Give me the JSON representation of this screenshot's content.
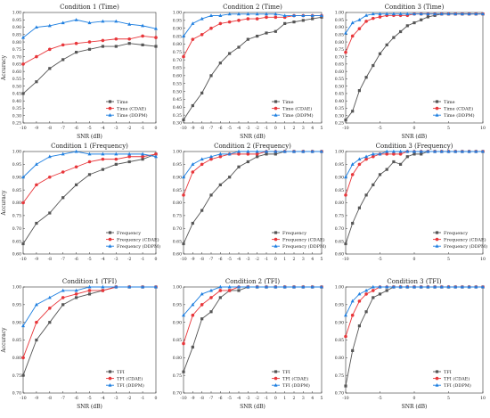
{
  "figure": {
    "label": ""
  },
  "style": {
    "series_colors": [
      "#555555",
      "#e8363a",
      "#1f7fe0"
    ],
    "series_markers": [
      "square",
      "circle",
      "triangle"
    ]
  },
  "chart_data": [
    {
      "type": "line",
      "title": "Condition 1 (Time)",
      "xlabel": "SNR (dB)",
      "ylabel": "Accuracy",
      "x": [
        -10,
        -9,
        -8,
        -7,
        -6,
        -5,
        -4,
        -3,
        -2,
        -1,
        0
      ],
      "xlim": [
        -10,
        0
      ],
      "xticks": [
        -10,
        -9,
        -8,
        -7,
        -6,
        -5,
        -4,
        -3,
        -2,
        -1,
        0
      ],
      "ylim": [
        0.25,
        1.0
      ],
      "yticks": [
        0.25,
        0.3,
        0.35,
        0.4,
        0.45,
        0.5,
        0.55,
        0.6,
        0.65,
        0.7,
        0.75,
        0.8,
        0.85,
        0.9,
        0.95,
        1.0
      ],
      "grid": false,
      "legend": "bottom-right",
      "series": [
        {
          "name": "Time",
          "values": [
            0.45,
            0.53,
            0.62,
            0.68,
            0.73,
            0.75,
            0.77,
            0.77,
            0.79,
            0.78,
            0.77
          ]
        },
        {
          "name": "Time (CDAE)",
          "values": [
            0.65,
            0.7,
            0.75,
            0.78,
            0.79,
            0.8,
            0.81,
            0.82,
            0.82,
            0.84,
            0.83
          ]
        },
        {
          "name": "Time (DDPM)",
          "values": [
            0.83,
            0.9,
            0.91,
            0.93,
            0.95,
            0.93,
            0.94,
            0.94,
            0.92,
            0.91,
            0.89
          ]
        }
      ]
    },
    {
      "type": "line",
      "title": "Condition 2 (Time)",
      "xlabel": "SNR (dB)",
      "ylabel": "",
      "x": [
        -10,
        -9,
        -8,
        -7,
        -6,
        -5,
        -4,
        -3,
        -2,
        -1,
        0,
        1,
        2,
        3,
        4,
        5
      ],
      "xlim": [
        -10,
        5
      ],
      "xticks": [
        -10,
        -9,
        -8,
        -7,
        -6,
        -5,
        -4,
        -3,
        -2,
        -1,
        0,
        1,
        2,
        3,
        4,
        5
      ],
      "ylim": [
        0.3,
        1.0
      ],
      "yticks": [
        0.3,
        0.35,
        0.4,
        0.45,
        0.5,
        0.55,
        0.6,
        0.65,
        0.7,
        0.75,
        0.8,
        0.85,
        0.9,
        0.95,
        1.0
      ],
      "grid": false,
      "legend": "bottom-right",
      "series": [
        {
          "name": "Time",
          "values": [
            0.32,
            0.41,
            0.49,
            0.6,
            0.68,
            0.74,
            0.78,
            0.83,
            0.85,
            0.87,
            0.88,
            0.93,
            0.94,
            0.95,
            0.96,
            0.97
          ]
        },
        {
          "name": "Time (CDAE)",
          "values": [
            0.72,
            0.83,
            0.86,
            0.9,
            0.93,
            0.94,
            0.95,
            0.96,
            0.96,
            0.97,
            0.97,
            0.97,
            0.98,
            0.98,
            0.98,
            0.98
          ]
        },
        {
          "name": "Time (DDPM)",
          "values": [
            0.85,
            0.93,
            0.96,
            0.98,
            0.98,
            0.99,
            0.99,
            0.99,
            0.99,
            0.99,
            0.99,
            0.98,
            0.98,
            0.98,
            0.98,
            0.98
          ]
        }
      ]
    },
    {
      "type": "line",
      "title": "Condition 3 (Time)",
      "xlabel": "SNR (dB)",
      "ylabel": "",
      "x": [
        -10,
        -9,
        -8,
        -7,
        -6,
        -5,
        -4,
        -3,
        -2,
        -1,
        0,
        1,
        2,
        3,
        4,
        5,
        6,
        7,
        8,
        9,
        10
      ],
      "xlim": [
        -10,
        10
      ],
      "xticks": [
        -10,
        -5,
        0,
        5,
        10
      ],
      "ylim": [
        0.25,
        1.0
      ],
      "yticks": [
        0.25,
        0.3,
        0.35,
        0.4,
        0.45,
        0.5,
        0.55,
        0.6,
        0.65,
        0.7,
        0.75,
        0.8,
        0.85,
        0.9,
        0.95,
        1.0
      ],
      "grid": false,
      "legend": "bottom-right",
      "series": [
        {
          "name": "Time",
          "values": [
            0.27,
            0.33,
            0.47,
            0.56,
            0.64,
            0.72,
            0.78,
            0.83,
            0.87,
            0.91,
            0.93,
            0.95,
            0.97,
            0.98,
            0.99,
            0.99,
            0.99,
            0.99,
            0.99,
            0.99,
            0.99
          ]
        },
        {
          "name": "Time (CDAE)",
          "values": [
            0.73,
            0.84,
            0.89,
            0.94,
            0.96,
            0.97,
            0.98,
            0.98,
            0.98,
            0.98,
            0.99,
            0.99,
            0.99,
            0.99,
            0.99,
            0.99,
            0.99,
            0.99,
            0.99,
            0.99,
            0.99
          ]
        },
        {
          "name": "Time (DDPM)",
          "values": [
            0.86,
            0.93,
            0.95,
            0.98,
            0.99,
            0.99,
            0.99,
            0.99,
            0.99,
            0.99,
            0.99,
            0.99,
            0.99,
            0.99,
            0.99,
            0.99,
            0.99,
            0.99,
            0.99,
            0.99,
            0.99
          ]
        }
      ]
    },
    {
      "type": "line",
      "title": "Condition 1 (Frequency)",
      "xlabel": "",
      "ylabel": "Accuracy",
      "x": [
        -10,
        -9,
        -8,
        -7,
        -6,
        -5,
        -4,
        -3,
        -2,
        -1,
        0
      ],
      "xlim": [
        -10,
        0
      ],
      "xticks": [
        -10,
        -9,
        -8,
        -7,
        -6,
        -5,
        -4,
        -3,
        -2,
        -1,
        0
      ],
      "ylim": [
        0.6,
        1.0
      ],
      "yticks": [
        0.6,
        0.65,
        0.7,
        0.75,
        0.8,
        0.85,
        0.9,
        0.95,
        1.0
      ],
      "grid": false,
      "legend": "bottom-right",
      "series": [
        {
          "name": "Frequency",
          "values": [
            0.64,
            0.72,
            0.76,
            0.82,
            0.87,
            0.91,
            0.93,
            0.95,
            0.96,
            0.97,
            0.99
          ]
        },
        {
          "name": "Frequency (CDAE)",
          "values": [
            0.8,
            0.87,
            0.9,
            0.92,
            0.94,
            0.96,
            0.97,
            0.97,
            0.98,
            0.98,
            0.99
          ]
        },
        {
          "name": "Frequency (DDPM)",
          "values": [
            0.9,
            0.95,
            0.98,
            0.99,
            1.0,
            0.99,
            0.99,
            0.99,
            0.99,
            0.99,
            0.98
          ]
        }
      ]
    },
    {
      "type": "line",
      "title": "Condition 2 (Frequency)",
      "xlabel": "",
      "ylabel": "",
      "x": [
        -10,
        -9,
        -8,
        -7,
        -6,
        -5,
        -4,
        -3,
        -2,
        -1,
        0,
        1,
        2,
        3,
        4,
        5
      ],
      "xlim": [
        -10,
        5
      ],
      "xticks": [
        -10,
        -9,
        -8,
        -7,
        -6,
        -5,
        -4,
        -3,
        -2,
        -1,
        0,
        1,
        2,
        3,
        4,
        5
      ],
      "ylim": [
        0.6,
        1.0
      ],
      "yticks": [
        0.6,
        0.65,
        0.7,
        0.75,
        0.8,
        0.85,
        0.9,
        0.95,
        1.0
      ],
      "grid": false,
      "legend": "bottom-right",
      "series": [
        {
          "name": "Frequency",
          "values": [
            0.64,
            0.72,
            0.77,
            0.83,
            0.87,
            0.9,
            0.94,
            0.96,
            0.98,
            0.99,
            0.99,
            1.0,
            1.0,
            1.0,
            1.0,
            1.0
          ]
        },
        {
          "name": "Frequency (CDAE)",
          "values": [
            0.83,
            0.92,
            0.95,
            0.97,
            0.98,
            0.99,
            0.99,
            0.99,
            0.99,
            1.0,
            1.0,
            1.0,
            1.0,
            1.0,
            1.0,
            1.0
          ]
        },
        {
          "name": "Frequency (DDPM)",
          "values": [
            0.9,
            0.95,
            0.97,
            0.98,
            0.99,
            0.99,
            1.0,
            1.0,
            1.0,
            1.0,
            1.0,
            1.0,
            1.0,
            1.0,
            1.0,
            1.0
          ]
        }
      ]
    },
    {
      "type": "line",
      "title": "Condition 3 (Frequency)",
      "xlabel": "",
      "ylabel": "",
      "x": [
        -10,
        -9,
        -8,
        -7,
        -6,
        -5,
        -4,
        -3,
        -2,
        -1,
        0,
        1,
        2,
        3,
        4,
        5,
        6,
        7,
        8,
        9,
        10
      ],
      "xlim": [
        -10,
        10
      ],
      "xticks": [
        -10,
        -5,
        0,
        5,
        10
      ],
      "ylim": [
        0.6,
        1.0
      ],
      "yticks": [
        0.6,
        0.65,
        0.7,
        0.75,
        0.8,
        0.85,
        0.9,
        0.95,
        1.0
      ],
      "grid": false,
      "legend": "bottom-right",
      "series": [
        {
          "name": "Frequency",
          "values": [
            0.64,
            0.72,
            0.78,
            0.83,
            0.87,
            0.91,
            0.93,
            0.96,
            0.95,
            0.98,
            0.99,
            0.99,
            1.0,
            1.0,
            1.0,
            1.0,
            1.0,
            1.0,
            1.0,
            1.0,
            1.0
          ]
        },
        {
          "name": "Frequency (CDAE)",
          "values": [
            0.83,
            0.91,
            0.95,
            0.97,
            0.98,
            0.99,
            0.99,
            0.99,
            0.99,
            1.0,
            1.0,
            1.0,
            1.0,
            1.0,
            1.0,
            1.0,
            1.0,
            1.0,
            1.0,
            1.0,
            1.0
          ]
        },
        {
          "name": "Frequency (DDPM)",
          "values": [
            0.9,
            0.95,
            0.97,
            0.98,
            0.99,
            0.99,
            1.0,
            1.0,
            1.0,
            1.0,
            1.0,
            1.0,
            1.0,
            1.0,
            1.0,
            1.0,
            1.0,
            1.0,
            1.0,
            1.0,
            1.0
          ]
        }
      ]
    },
    {
      "type": "line",
      "title": "Condition 1 (TFI)",
      "xlabel": "SNR (dB)",
      "ylabel": "Accuracy",
      "x": [
        -10,
        -9,
        -8,
        -7,
        -6,
        -5,
        -4,
        -3,
        -2,
        -1,
        0
      ],
      "xlim": [
        -10,
        0
      ],
      "xticks": [
        -10,
        -9,
        -8,
        -7,
        -6,
        -5,
        -4,
        -3,
        -2,
        -1,
        0
      ],
      "ylim": [
        0.7,
        1.0
      ],
      "yticks": [
        0.7,
        0.75,
        0.8,
        0.85,
        0.9,
        0.95,
        1.0
      ],
      "grid": false,
      "legend": "bottom-right",
      "series": [
        {
          "name": "TFI",
          "values": [
            0.75,
            0.85,
            0.9,
            0.95,
            0.97,
            0.98,
            0.99,
            1.0,
            1.0,
            1.0,
            1.0
          ]
        },
        {
          "name": "TFI (CDAE)",
          "values": [
            0.8,
            0.9,
            0.94,
            0.97,
            0.98,
            0.99,
            0.99,
            1.0,
            1.0,
            1.0,
            1.0
          ]
        },
        {
          "name": "TFI (DDPM)",
          "values": [
            0.89,
            0.95,
            0.97,
            0.99,
            0.99,
            1.0,
            1.0,
            1.0,
            1.0,
            1.0,
            1.0
          ]
        }
      ]
    },
    {
      "type": "line",
      "title": "Condition 2 (TFI)",
      "xlabel": "SNR (dB)",
      "ylabel": "",
      "x": [
        -10,
        -9,
        -8,
        -7,
        -6,
        -5,
        -4,
        -3,
        -2,
        -1,
        0,
        1,
        2,
        3,
        4,
        5
      ],
      "xlim": [
        -10,
        5
      ],
      "xticks": [
        -10,
        -9,
        -8,
        -7,
        -6,
        -5,
        -4,
        -3,
        -2,
        -1,
        0,
        1,
        2,
        3,
        4,
        5
      ],
      "ylim": [
        0.7,
        1.0
      ],
      "yticks": [
        0.7,
        0.75,
        0.8,
        0.85,
        0.9,
        0.95,
        1.0
      ],
      "grid": false,
      "legend": "bottom-right",
      "series": [
        {
          "name": "TFI",
          "values": [
            0.76,
            0.83,
            0.91,
            0.93,
            0.97,
            0.99,
            0.99,
            1.0,
            1.0,
            1.0,
            1.0,
            1.0,
            1.0,
            1.0,
            1.0,
            1.0
          ]
        },
        {
          "name": "TFI (CDAE)",
          "values": [
            0.84,
            0.92,
            0.95,
            0.97,
            0.99,
            0.99,
            1.0,
            1.0,
            1.0,
            1.0,
            1.0,
            1.0,
            1.0,
            1.0,
            1.0,
            1.0
          ]
        },
        {
          "name": "TFI (DDPM)",
          "values": [
            0.92,
            0.95,
            0.98,
            0.99,
            1.0,
            1.0,
            1.0,
            1.0,
            1.0,
            1.0,
            1.0,
            1.0,
            1.0,
            1.0,
            1.0,
            1.0
          ]
        }
      ]
    },
    {
      "type": "line",
      "title": "Condition 3 (TFI)",
      "xlabel": "SNR (dB)",
      "ylabel": "",
      "x": [
        -10,
        -9,
        -8,
        -7,
        -6,
        -5,
        -4,
        -3,
        -2,
        -1,
        0,
        1,
        2,
        3,
        4,
        5,
        6,
        7,
        8,
        9,
        10
      ],
      "xlim": [
        -10,
        10
      ],
      "xticks": [
        -10,
        -5,
        0,
        5,
        10
      ],
      "ylim": [
        0.7,
        1.0
      ],
      "yticks": [
        0.7,
        0.75,
        0.8,
        0.85,
        0.9,
        0.95,
        1.0
      ],
      "grid": false,
      "legend": "bottom-right",
      "series": [
        {
          "name": "TFI",
          "values": [
            0.72,
            0.82,
            0.89,
            0.93,
            0.97,
            0.98,
            0.99,
            1.0,
            1.0,
            1.0,
            1.0,
            1.0,
            1.0,
            1.0,
            1.0,
            1.0,
            1.0,
            1.0,
            1.0,
            1.0,
            1.0
          ]
        },
        {
          "name": "TFI (CDAE)",
          "values": [
            0.86,
            0.92,
            0.96,
            0.98,
            0.99,
            1.0,
            1.0,
            1.0,
            1.0,
            1.0,
            1.0,
            1.0,
            1.0,
            1.0,
            1.0,
            1.0,
            1.0,
            1.0,
            1.0,
            1.0,
            1.0
          ]
        },
        {
          "name": "TFI (DDPM)",
          "values": [
            0.92,
            0.96,
            0.98,
            0.99,
            1.0,
            1.0,
            1.0,
            1.0,
            1.0,
            1.0,
            1.0,
            1.0,
            1.0,
            1.0,
            1.0,
            1.0,
            1.0,
            1.0,
            1.0,
            1.0,
            1.0
          ]
        }
      ]
    }
  ]
}
